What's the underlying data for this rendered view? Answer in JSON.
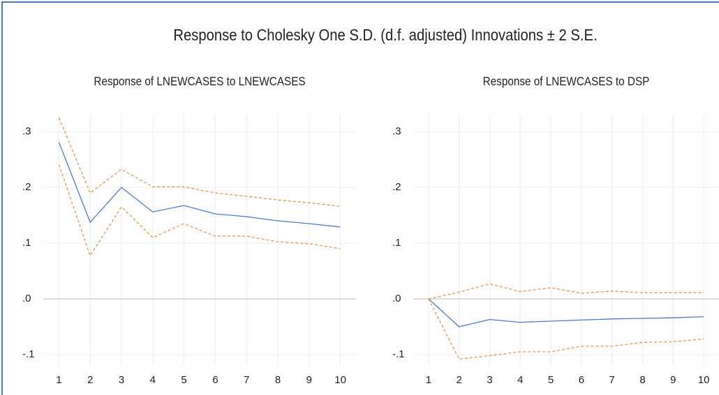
{
  "title": "Response to Cholesky One S.D. (d.f. adjusted) Innovations ± 2 S.E.",
  "chart_data": [
    {
      "type": "line",
      "title": "Response of LNEWCASES to LNEWCASES",
      "categories": [
        "1",
        "2",
        "3",
        "4",
        "5",
        "6",
        "7",
        "8",
        "9",
        "10"
      ],
      "series": [
        {
          "color": "#4a7cc9",
          "dashed": false,
          "values": [
            0.281,
            0.1375,
            0.2,
            0.156,
            0.1675,
            0.1525,
            0.1475,
            0.14,
            0.135,
            0.129
          ]
        },
        {
          "color": "#e8954a",
          "dashed": true,
          "values": [
            0.325,
            0.19,
            0.2325,
            0.201,
            0.201,
            0.19,
            0.184,
            0.1775,
            0.1725,
            0.166
          ]
        },
        {
          "color": "#e8954a",
          "dashed": true,
          "values": [
            0.241,
            0.0775,
            0.165,
            0.11,
            0.135,
            0.1125,
            0.1125,
            0.1025,
            0.099,
            0.09
          ]
        }
      ],
      "ylim": [
        -0.12,
        0.33
      ],
      "yticks": [
        {
          "value": -0.1,
          "label": "-.1"
        },
        {
          "value": 0,
          "label": ".0"
        },
        {
          "value": 0.1,
          "label": ".1"
        },
        {
          "value": 0.2,
          "label": ".2"
        },
        {
          "value": 0.3,
          "label": ".3"
        }
      ],
      "grid": true
    },
    {
      "type": "line",
      "title": "Response of LNEWCASES to DSP",
      "categories": [
        "1",
        "2",
        "3",
        "4",
        "5",
        "6",
        "7",
        "8",
        "9",
        "10"
      ],
      "series": [
        {
          "color": "#4a7cc9",
          "dashed": false,
          "values": [
            0,
            -0.05,
            -0.037,
            -0.042,
            -0.04,
            -0.038,
            -0.036,
            -0.035,
            -0.034,
            -0.032
          ]
        },
        {
          "color": "#e8954a",
          "dashed": true,
          "values": [
            0,
            0.012,
            0.027,
            0.013,
            0.02,
            0.01,
            0.014,
            0.011,
            0.011,
            0.011
          ]
        },
        {
          "color": "#e8954a",
          "dashed": true,
          "values": [
            0,
            -0.108,
            -0.102,
            -0.095,
            -0.095,
            -0.085,
            -0.085,
            -0.078,
            -0.077,
            -0.072
          ]
        }
      ],
      "ylim": [
        -0.12,
        0.33
      ],
      "yticks": [
        {
          "value": -0.1,
          "label": "-.1"
        },
        {
          "value": 0,
          "label": ".0"
        },
        {
          "value": 0.1,
          "label": ".1"
        },
        {
          "value": 0.2,
          "label": ".2"
        },
        {
          "value": 0.3,
          "label": ".3"
        }
      ],
      "grid": true
    }
  ]
}
